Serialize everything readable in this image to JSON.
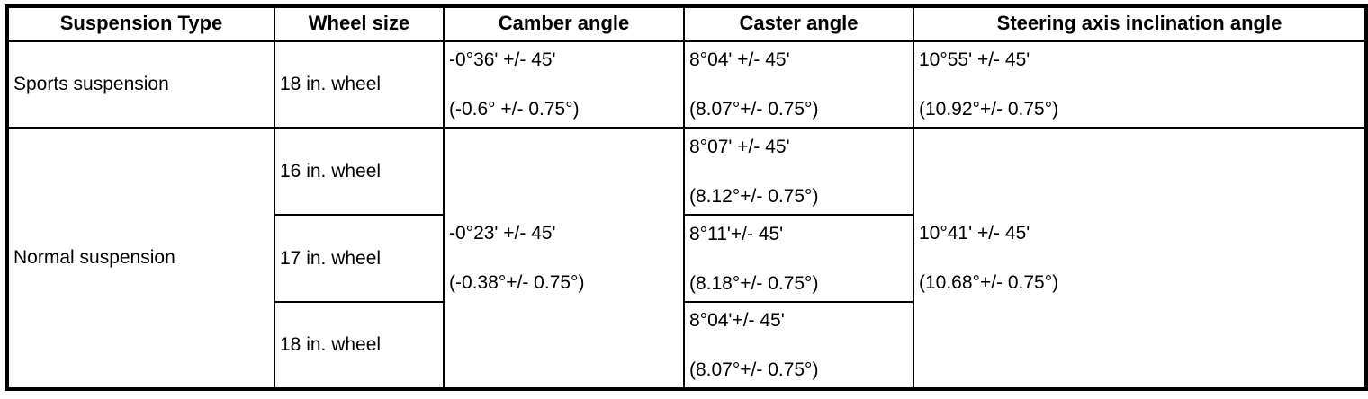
{
  "colors": {
    "background": "#ffffff",
    "border": "#000000",
    "text": "#000000"
  },
  "table": {
    "headers": {
      "suspension_type": "Suspension Type",
      "wheel_size": "Wheel size",
      "camber_angle": "Camber angle",
      "caster_angle": "Caster angle",
      "steering_axis_inclination_angle": "Steering axis inclination angle"
    },
    "sports": {
      "suspension": "Sports suspension",
      "wheel": "18 in. wheel",
      "camber": {
        "minutes": "-0°36' +/- 45'",
        "degrees": "(-0.6° +/- 0.75°)"
      },
      "caster": {
        "minutes": "8°04' +/- 45'",
        "degrees": "(8.07°+/- 0.75°)"
      },
      "sai": {
        "minutes": "10°55' +/- 45'",
        "degrees": "(10.92°+/- 0.75°)"
      }
    },
    "normal": {
      "suspension": "Normal suspension",
      "camber": {
        "minutes": "-0°23' +/- 45'",
        "degrees": "(-0.38°+/- 0.75°)"
      },
      "sai": {
        "minutes": "10°41' +/- 45'",
        "degrees": "(10.68°+/- 0.75°)"
      },
      "wheels": [
        {
          "wheel": "16 in. wheel",
          "caster": {
            "minutes": "8°07' +/- 45'",
            "degrees": "(8.12°+/- 0.75°)"
          }
        },
        {
          "wheel": "17 in. wheel",
          "caster": {
            "minutes": "8°11'+/- 45'",
            "degrees": "(8.18°+/- 0.75°)"
          }
        },
        {
          "wheel": "18 in. wheel",
          "caster": {
            "minutes": "8°04'+/- 45'",
            "degrees": "(8.07°+/- 0.75°)"
          }
        }
      ]
    }
  }
}
